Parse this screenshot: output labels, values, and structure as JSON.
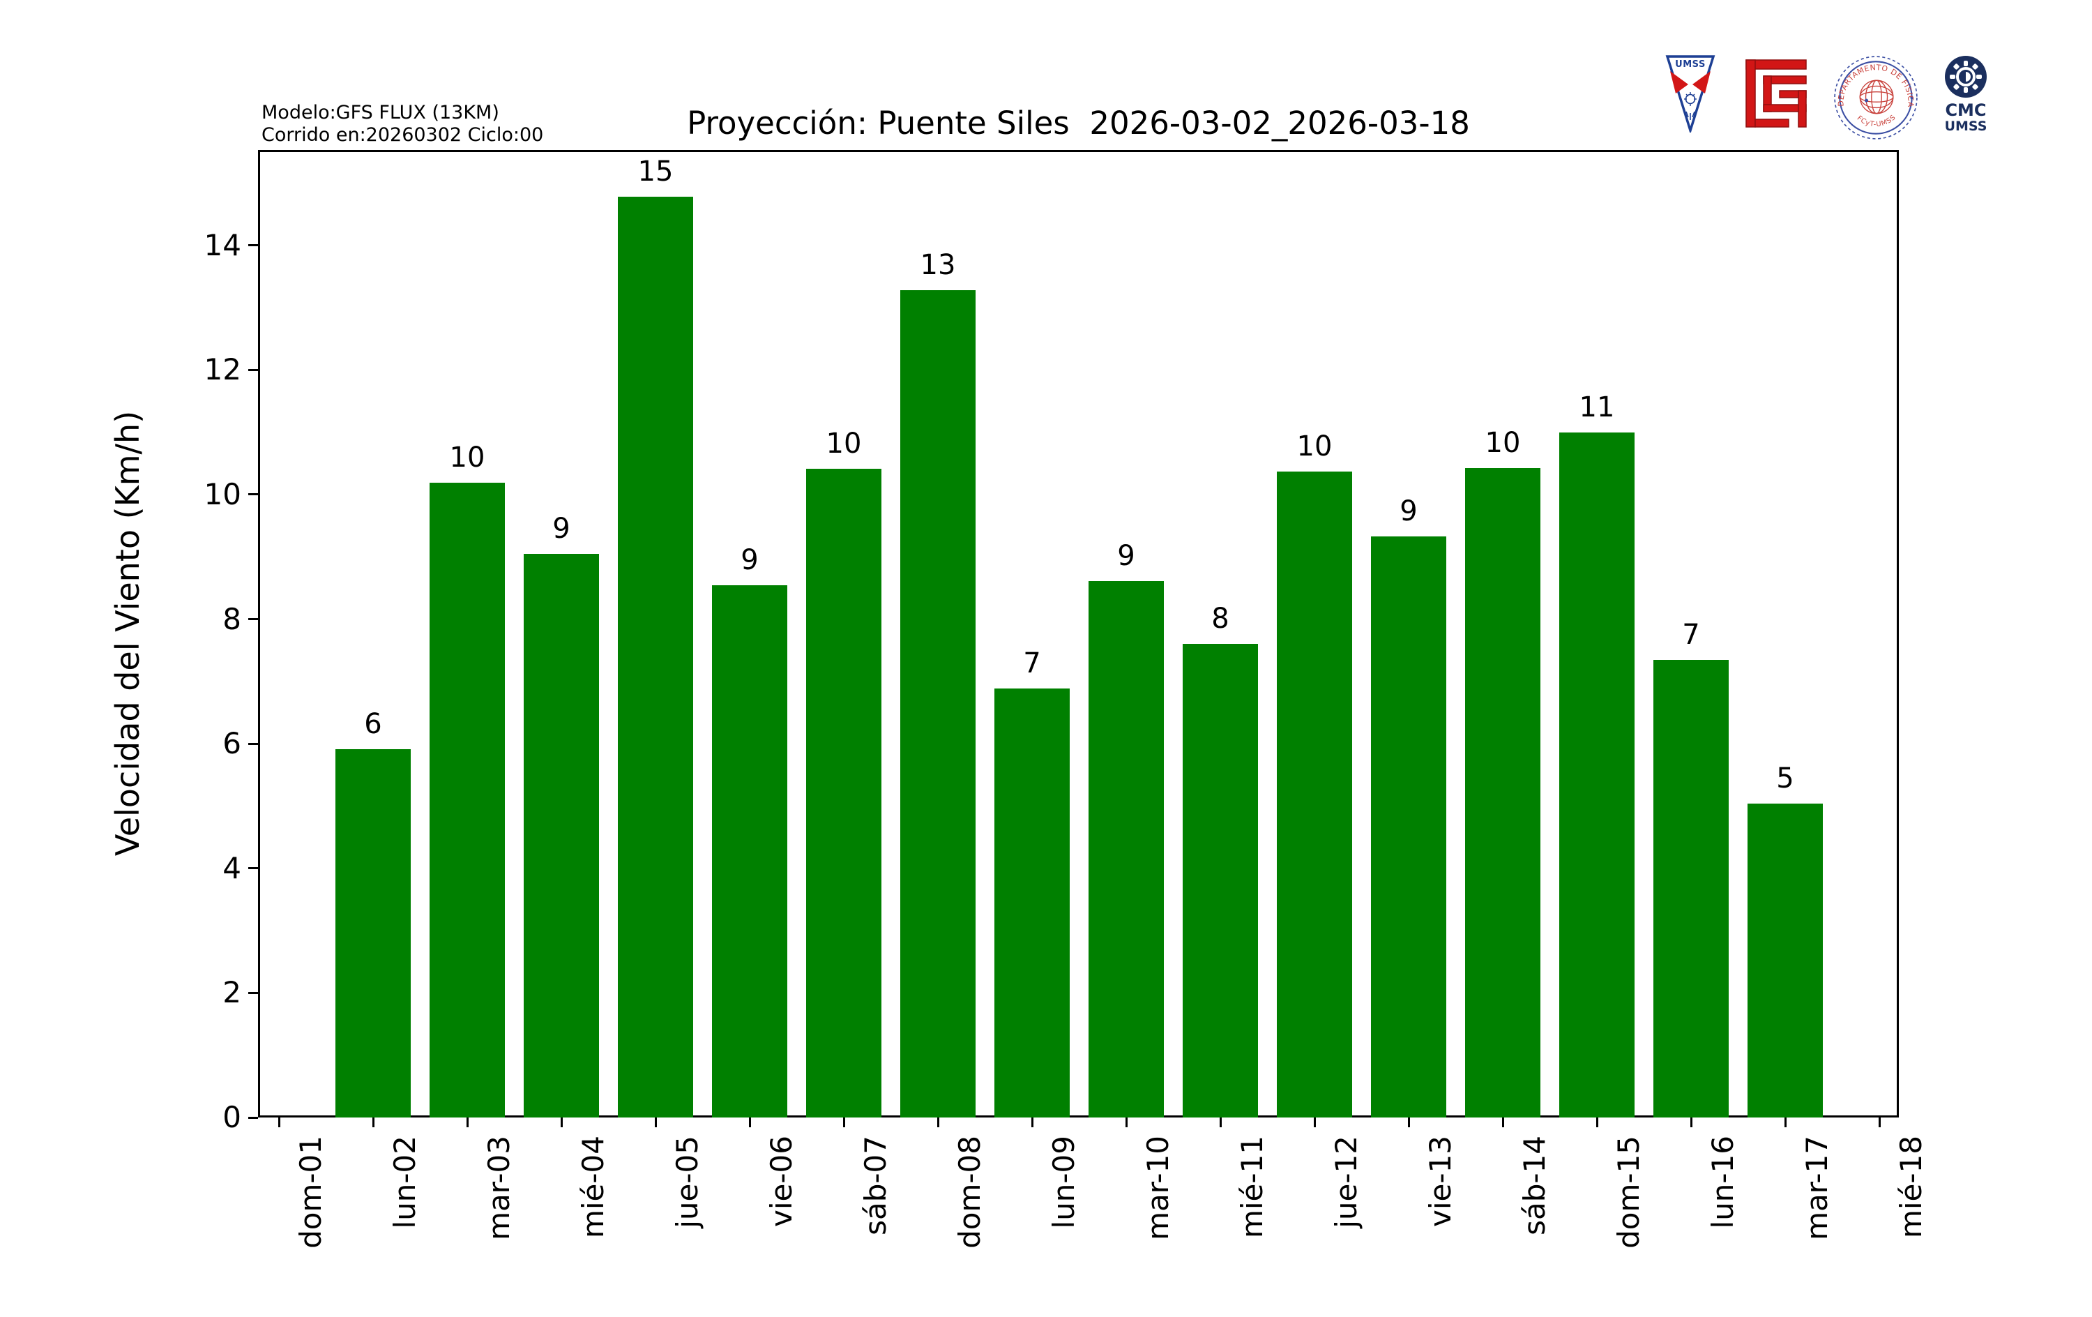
{
  "header": {
    "model_info_line1": "Modelo:GFS FLUX (13KM)",
    "model_info_line2": "Corrido en:20260302 Ciclo:00"
  },
  "logos": {
    "umss_pennant": {
      "label": "UMSS"
    },
    "fisica_seal": {
      "text_top": "DEPARTAMENTO DE FÍSICA",
      "text_bottom": "FCyT-UMSS"
    },
    "cmc": {
      "line1": "CMC",
      "line2": "UMSS"
    }
  },
  "chart_data": {
    "type": "bar",
    "title": "Proyección: Puente Siles  2026-03-02_2026-03-18",
    "xlabel": "",
    "ylabel": "Velocidad del Viento (Km/h)",
    "categories": [
      "dom-01",
      "lun-02",
      "mar-03",
      "mié-04",
      "jue-05",
      "vie-06",
      "sáb-07",
      "dom-08",
      "lun-09",
      "mar-10",
      "mié-11",
      "jue-12",
      "vie-13",
      "sáb-14",
      "dom-15",
      "lun-16",
      "mar-17",
      "mié-18"
    ],
    "values": [
      null,
      5.91,
      10.19,
      9.05,
      14.78,
      8.54,
      10.41,
      13.28,
      6.89,
      8.61,
      7.6,
      10.37,
      9.33,
      10.42,
      11.0,
      7.34,
      5.04,
      null
    ],
    "bar_labels": [
      "",
      "6",
      "10",
      "9",
      "15",
      "9",
      "10",
      "13",
      "7",
      "9",
      "8",
      "10",
      "9",
      "10",
      "11",
      "7",
      "5",
      ""
    ],
    "bar_color": "#008000",
    "ylim": [
      0,
      15.53
    ],
    "yticks": [
      0,
      2,
      4,
      6,
      8,
      10,
      12,
      14
    ],
    "grid": false,
    "legend": null
  }
}
